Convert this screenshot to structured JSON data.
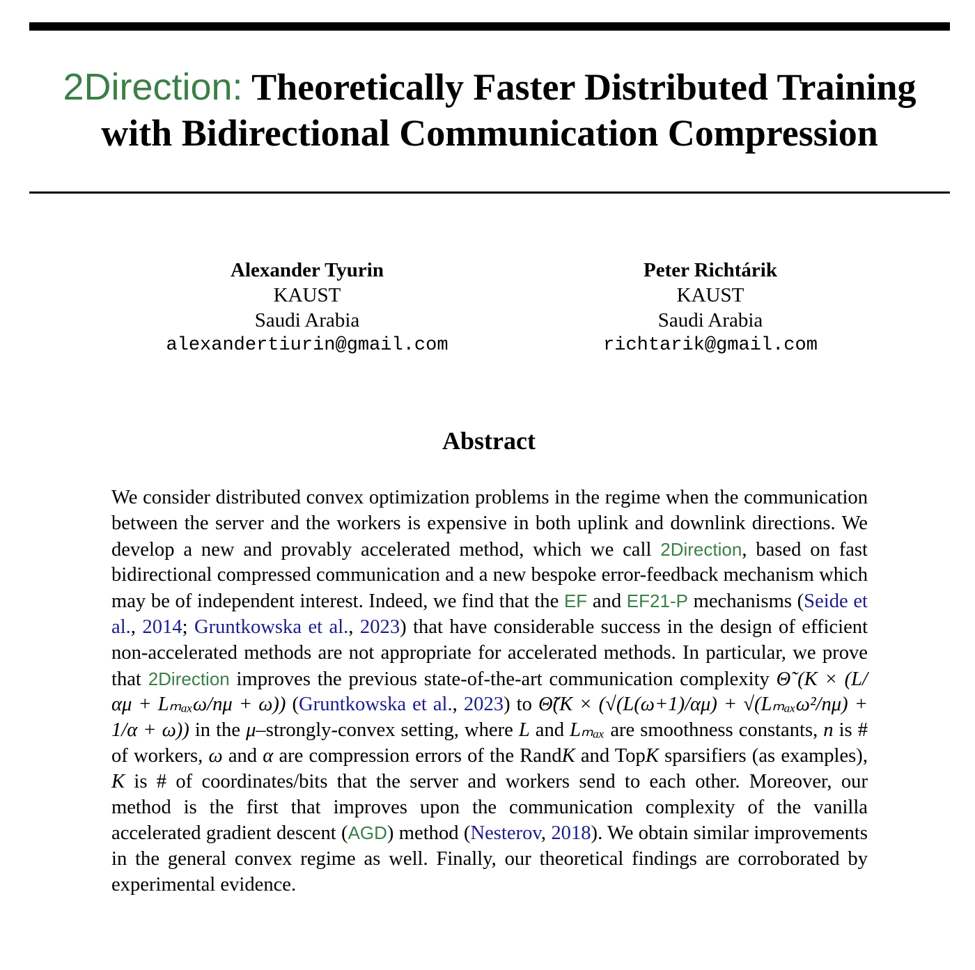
{
  "title": {
    "prefix": "2Direction:",
    "text": "Theoretically Faster Distributed Training with Bidirectional Communication Compression"
  },
  "colors": {
    "accent": "#3b7f47",
    "link": "#1c1c8a",
    "text": "#000000"
  },
  "authors": [
    {
      "name": "Alexander Tyurin",
      "affiliation": "KAUST",
      "country": "Saudi Arabia",
      "email": "alexandertiurin@gmail.com"
    },
    {
      "name": "Peter Richtárik",
      "affiliation": "KAUST",
      "country": "Saudi Arabia",
      "email": "richtarik@gmail.com"
    }
  ],
  "abstract": {
    "heading": "Abstract",
    "segments": [
      {
        "text": "We consider distributed convex optimization problems in the regime when the communication between the server and the workers is expensive in both uplink and downlink directions. We develop a new and provably accelerated method, which we call "
      },
      {
        "text": "2Direction",
        "style": "accent"
      },
      {
        "text": ", based on fast bidirectional compressed communication and a new bespoke error-feedback mechanism which may be of independent interest. Indeed, we find that the "
      },
      {
        "text": "EF",
        "style": "accent"
      },
      {
        "text": " and "
      },
      {
        "text": "EF21-P",
        "style": "accent"
      },
      {
        "text": " mechanisms ("
      },
      {
        "text": "Seide et al.",
        "style": "link"
      },
      {
        "text": ", "
      },
      {
        "text": "2014",
        "style": "link"
      },
      {
        "text": "; "
      },
      {
        "text": "Gruntkowska et al.",
        "style": "link"
      },
      {
        "text": ", "
      },
      {
        "text": "2023",
        "style": "link"
      },
      {
        "text": ") that have considerable success in the design of efficient non-accelerated methods are not appropriate for accelerated methods. In particular, we prove that "
      },
      {
        "text": "2Direction",
        "style": "accent"
      },
      {
        "text": " improves the previous state-of-the-art communication complexity "
      },
      {
        "text": "Θ̃ (K × (L/αμ + Lₘₐₓω/nμ + ω))",
        "style": "math"
      },
      {
        "text": " ("
      },
      {
        "text": "Gruntkowska et al.",
        "style": "link"
      },
      {
        "text": ", "
      },
      {
        "text": "2023",
        "style": "link"
      },
      {
        "text": ") to "
      },
      {
        "text": "Θ̃(K × (√(L(ω+1)/αμ) + √(Lₘₐₓω²/nμ) + 1/α + ω))",
        "style": "math"
      },
      {
        "text": " in the "
      },
      {
        "text": "μ",
        "style": "math"
      },
      {
        "text": "–strongly-convex setting, where "
      },
      {
        "text": "L",
        "style": "math"
      },
      {
        "text": " and "
      },
      {
        "text": "Lₘₐₓ",
        "style": "math"
      },
      {
        "text": " are smoothness constants, "
      },
      {
        "text": "n",
        "style": "math"
      },
      {
        "text": " is # of workers, "
      },
      {
        "text": "ω",
        "style": "math"
      },
      {
        "text": " and "
      },
      {
        "text": "α",
        "style": "math"
      },
      {
        "text": " are compression errors of the Rand"
      },
      {
        "text": "K",
        "style": "math"
      },
      {
        "text": " and Top"
      },
      {
        "text": "K",
        "style": "math"
      },
      {
        "text": " sparsifiers (as examples), "
      },
      {
        "text": "K",
        "style": "math"
      },
      {
        "text": " is # of coordinates/bits that the server and workers send to each other. Moreover, our method is the first that improves upon the communication complexity of the vanilla accelerated gradient descent ("
      },
      {
        "text": "AGD",
        "style": "accent"
      },
      {
        "text": ") method ("
      },
      {
        "text": "Nesterov",
        "style": "link"
      },
      {
        "text": ", "
      },
      {
        "text": "2018",
        "style": "link"
      },
      {
        "text": "). We obtain similar improvements in the general convex regime as well. Finally, our theoretical findings are corroborated by experimental evidence."
      }
    ]
  }
}
